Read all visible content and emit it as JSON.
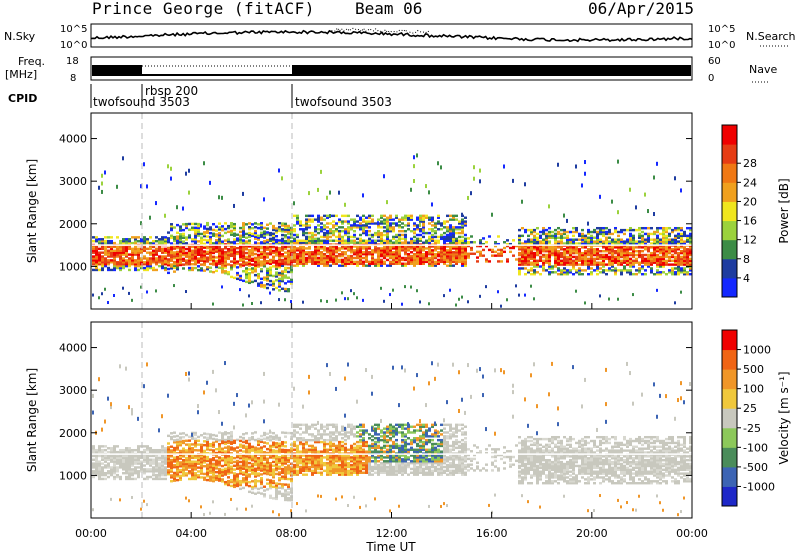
{
  "header": {
    "title": "Prince George (fitACF)",
    "beam": "Beam 06",
    "date": "06/Apr/2015"
  },
  "panels": {
    "nsky": {
      "label": "N.Sky",
      "ticks": [
        "10^5",
        "10^0"
      ],
      "right_ticks": [
        "10^5",
        "10^0"
      ],
      "right_label": "N.Search"
    },
    "freq": {
      "label_line1": "Freq.",
      "label_line2": "[MHz]",
      "ticks": [
        "18",
        "8"
      ],
      "right_ticks": [
        "60",
        "0"
      ],
      "right_label": "Nave"
    },
    "cpid": {
      "label": "CPID",
      "segments": [
        "twofsound 3503",
        "rbsp 200",
        "twofsound 3503"
      ]
    }
  },
  "chart_data": [
    {
      "type": "heatmap",
      "name": "power-panel",
      "xlabel": "",
      "ylabel": "Slant Range [km]",
      "x_range": [
        0,
        24
      ],
      "ylim": [
        0,
        4600
      ],
      "yticks": [
        1000,
        2000,
        3000,
        4000
      ],
      "colorbar": {
        "label": "Power [dB]",
        "ticks": [
          4,
          8,
          12,
          16,
          20,
          24,
          28
        ],
        "colors": [
          "#1428ff",
          "#1e3ca0",
          "#3c8c46",
          "#9bd23c",
          "#f0e61e",
          "#f0a01e",
          "#f07814",
          "#e63c14",
          "#f00000"
        ]
      }
    },
    {
      "type": "heatmap",
      "name": "velocity-panel",
      "xlabel": "Time UT",
      "ylabel": "Slant Range [km]",
      "x_range": [
        0,
        24
      ],
      "ylim": [
        0,
        4600
      ],
      "xticks": [
        "00:00",
        "04:00",
        "08:00",
        "12:00",
        "16:00",
        "20:00",
        "00:00"
      ],
      "yticks": [
        1000,
        2000,
        3000,
        4000
      ],
      "colorbar": {
        "label": "Velocity [m s⁻¹]",
        "ticks": [
          "1000",
          "500",
          "100",
          "25",
          "-25",
          "-100",
          "-500",
          "-1000"
        ],
        "colors": [
          "#1e28c8",
          "#3c64b4",
          "#4a8c5a",
          "#8cc85a",
          "#c8c8be",
          "#f0c83c",
          "#f09628",
          "#f06414",
          "#f00000"
        ]
      }
    }
  ]
}
